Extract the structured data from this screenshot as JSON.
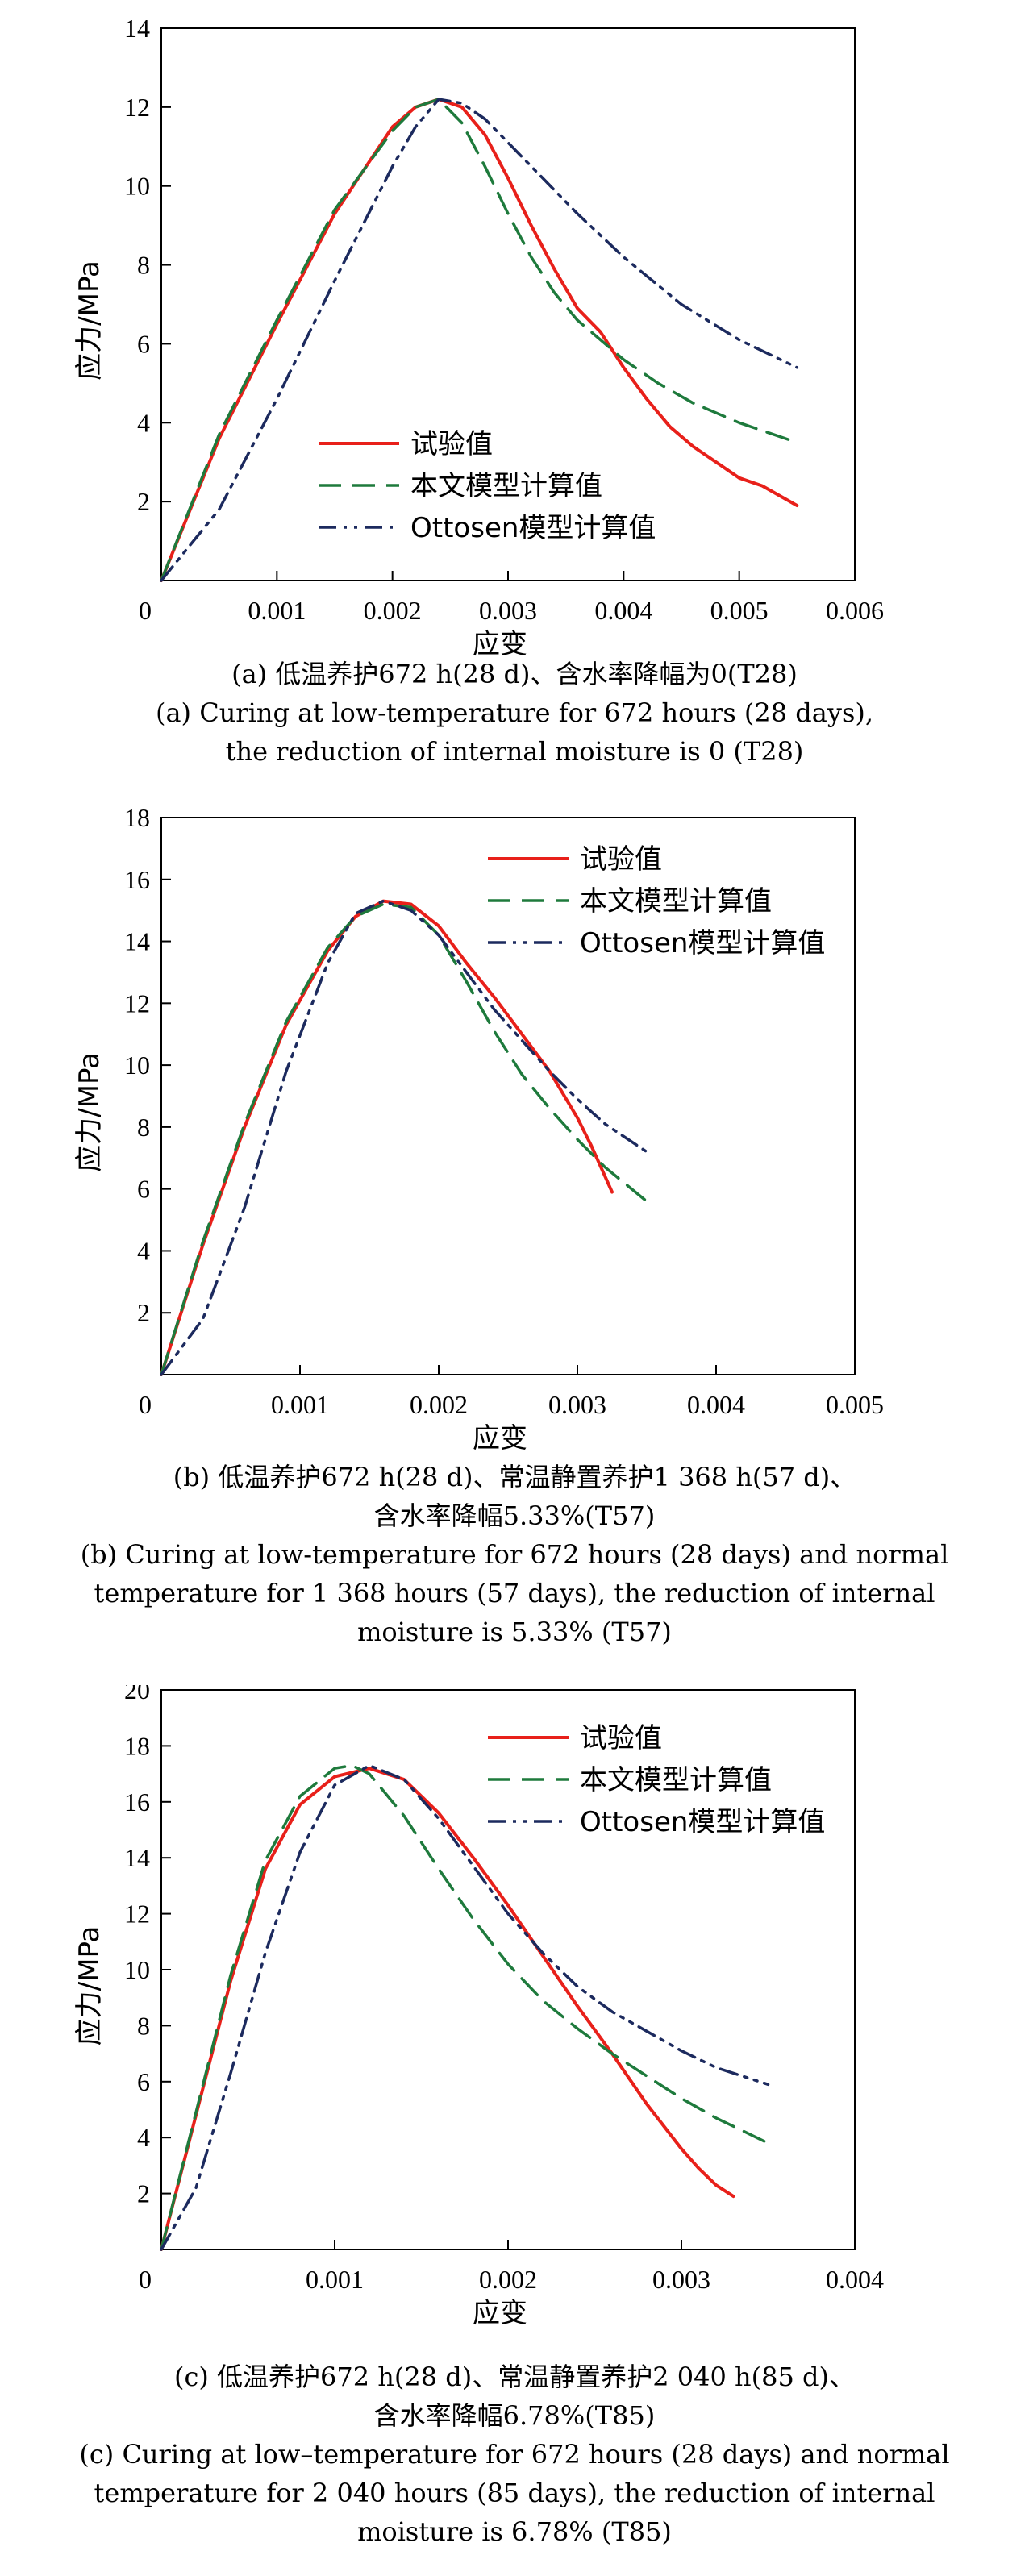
{
  "chart_data": [
    {
      "type": "line",
      "xlabel": "应变",
      "ylabel": "应力/MPa",
      "xlim": [
        0,
        0.006
      ],
      "ylim": [
        0,
        14
      ],
      "x_ticks": [
        "0",
        "0.001",
        "0.002",
        "0.003",
        "0.004",
        "0.005",
        "0.006"
      ],
      "y_ticks": [
        "2",
        "4",
        "6",
        "8",
        "10",
        "12",
        "14"
      ],
      "legend_position": "bottom-left",
      "series": [
        {
          "name": "试验值",
          "color": "#e8201a",
          "style": "solid",
          "points": [
            [
              0,
              0
            ],
            [
              0.0005,
              3.6
            ],
            [
              0.001,
              6.5
            ],
            [
              0.0015,
              9.3
            ],
            [
              0.002,
              11.5
            ],
            [
              0.0022,
              12.0
            ],
            [
              0.0024,
              12.2
            ],
            [
              0.0026,
              12.0
            ],
            [
              0.0028,
              11.3
            ],
            [
              0.003,
              10.2
            ],
            [
              0.0032,
              9.0
            ],
            [
              0.0034,
              7.9
            ],
            [
              0.0036,
              6.9
            ],
            [
              0.0038,
              6.3
            ],
            [
              0.004,
              5.4
            ],
            [
              0.0042,
              4.6
            ],
            [
              0.0044,
              3.9
            ],
            [
              0.0046,
              3.4
            ],
            [
              0.0048,
              3.0
            ],
            [
              0.005,
              2.6
            ],
            [
              0.0052,
              2.4
            ],
            [
              0.0055,
              1.9
            ]
          ]
        },
        {
          "name": "本文模型计算值",
          "color": "#1e7a3c",
          "style": "dashed",
          "points": [
            [
              0,
              0
            ],
            [
              0.0005,
              3.7
            ],
            [
              0.001,
              6.6
            ],
            [
              0.0015,
              9.4
            ],
            [
              0.002,
              11.4
            ],
            [
              0.0022,
              12.0
            ],
            [
              0.0024,
              12.2
            ],
            [
              0.0026,
              11.6
            ],
            [
              0.0028,
              10.5
            ],
            [
              0.003,
              9.3
            ],
            [
              0.0032,
              8.2
            ],
            [
              0.0034,
              7.3
            ],
            [
              0.0036,
              6.6
            ],
            [
              0.0038,
              6.1
            ],
            [
              0.004,
              5.6
            ],
            [
              0.0043,
              5.0
            ],
            [
              0.0046,
              4.5
            ],
            [
              0.005,
              4.0
            ],
            [
              0.0055,
              3.5
            ]
          ]
        },
        {
          "name": "Ottosen模型计算值",
          "color": "#1c2a5e",
          "style": "dashdotdot",
          "points": [
            [
              0,
              0
            ],
            [
              0.0005,
              1.8
            ],
            [
              0.001,
              4.6
            ],
            [
              0.0015,
              7.6
            ],
            [
              0.002,
              10.5
            ],
            [
              0.0022,
              11.5
            ],
            [
              0.0024,
              12.2
            ],
            [
              0.0026,
              12.1
            ],
            [
              0.0028,
              11.7
            ],
            [
              0.003,
              11.1
            ],
            [
              0.0033,
              10.2
            ],
            [
              0.0036,
              9.3
            ],
            [
              0.004,
              8.2
            ],
            [
              0.0045,
              7.0
            ],
            [
              0.005,
              6.1
            ],
            [
              0.0055,
              5.4
            ]
          ]
        }
      ]
    },
    {
      "type": "line",
      "xlabel": "应变",
      "ylabel": "应力/MPa",
      "xlim": [
        0,
        0.005
      ],
      "ylim": [
        0,
        18
      ],
      "x_ticks": [
        "0",
        "0.001",
        "0.002",
        "0.003",
        "0.004",
        "0.005"
      ],
      "y_ticks": [
        "2",
        "4",
        "6",
        "8",
        "10",
        "12",
        "14",
        "16",
        "18"
      ],
      "legend_position": "top-right",
      "series": [
        {
          "name": "试验值",
          "color": "#e8201a",
          "style": "solid",
          "points": [
            [
              0,
              0
            ],
            [
              0.0003,
              4.2
            ],
            [
              0.0006,
              8.0
            ],
            [
              0.0009,
              11.3
            ],
            [
              0.0012,
              13.7
            ],
            [
              0.0014,
              14.8
            ],
            [
              0.0016,
              15.3
            ],
            [
              0.0018,
              15.2
            ],
            [
              0.002,
              14.5
            ],
            [
              0.0022,
              13.3
            ],
            [
              0.0024,
              12.2
            ],
            [
              0.0026,
              11.0
            ],
            [
              0.0028,
              9.8
            ],
            [
              0.003,
              8.3
            ],
            [
              0.0031,
              7.4
            ],
            [
              0.0032,
              6.4
            ],
            [
              0.00325,
              5.9
            ]
          ]
        },
        {
          "name": "本文模型计算值",
          "color": "#1e7a3c",
          "style": "dashed",
          "points": [
            [
              0,
              0
            ],
            [
              0.0003,
              4.3
            ],
            [
              0.0006,
              8.1
            ],
            [
              0.0009,
              11.4
            ],
            [
              0.0012,
              13.8
            ],
            [
              0.0014,
              14.8
            ],
            [
              0.0016,
              15.2
            ],
            [
              0.0018,
              15.1
            ],
            [
              0.002,
              14.2
            ],
            [
              0.0022,
              12.7
            ],
            [
              0.0024,
              11.1
            ],
            [
              0.0026,
              9.7
            ],
            [
              0.0028,
              8.6
            ],
            [
              0.003,
              7.6
            ],
            [
              0.0032,
              6.7
            ],
            [
              0.0035,
              5.6
            ]
          ]
        },
        {
          "name": "Ottosen模型计算值",
          "color": "#1c2a5e",
          "style": "dashdotdot",
          "points": [
            [
              0,
              0
            ],
            [
              0.0003,
              1.8
            ],
            [
              0.0006,
              5.4
            ],
            [
              0.0009,
              9.8
            ],
            [
              0.0012,
              13.3
            ],
            [
              0.0014,
              14.9
            ],
            [
              0.0016,
              15.3
            ],
            [
              0.0018,
              15.0
            ],
            [
              0.002,
              14.2
            ],
            [
              0.0022,
              13.0
            ],
            [
              0.0024,
              11.8
            ],
            [
              0.0026,
              10.8
            ],
            [
              0.0028,
              9.8
            ],
            [
              0.003,
              8.9
            ],
            [
              0.0032,
              8.1
            ],
            [
              0.0035,
              7.2
            ]
          ]
        }
      ]
    },
    {
      "type": "line",
      "xlabel": "应变",
      "ylabel": "应力/MPa",
      "xlim": [
        0,
        0.004
      ],
      "ylim": [
        0,
        20
      ],
      "x_ticks": [
        "0",
        "0.001",
        "0.002",
        "0.003",
        "0.004"
      ],
      "y_ticks": [
        "2",
        "4",
        "6",
        "8",
        "10",
        "12",
        "14",
        "16",
        "18",
        "20"
      ],
      "legend_position": "top-right",
      "series": [
        {
          "name": "试验值",
          "color": "#e8201a",
          "style": "solid",
          "points": [
            [
              0,
              0
            ],
            [
              0.0002,
              4.8
            ],
            [
              0.0004,
              9.6
            ],
            [
              0.0006,
              13.6
            ],
            [
              0.0008,
              15.9
            ],
            [
              0.001,
              16.9
            ],
            [
              0.0012,
              17.2
            ],
            [
              0.0014,
              16.8
            ],
            [
              0.0016,
              15.6
            ],
            [
              0.0018,
              14.0
            ],
            [
              0.002,
              12.3
            ],
            [
              0.0022,
              10.5
            ],
            [
              0.0024,
              8.7
            ],
            [
              0.0026,
              7.0
            ],
            [
              0.0028,
              5.2
            ],
            [
              0.003,
              3.6
            ],
            [
              0.0031,
              2.9
            ],
            [
              0.0032,
              2.3
            ],
            [
              0.0033,
              1.9
            ]
          ]
        },
        {
          "name": "本文模型计算值",
          "color": "#1e7a3c",
          "style": "dashed",
          "points": [
            [
              0,
              0
            ],
            [
              0.0002,
              4.9
            ],
            [
              0.0004,
              9.8
            ],
            [
              0.0006,
              13.9
            ],
            [
              0.0008,
              16.2
            ],
            [
              0.001,
              17.2
            ],
            [
              0.0011,
              17.3
            ],
            [
              0.0012,
              17.0
            ],
            [
              0.0014,
              15.5
            ],
            [
              0.0016,
              13.6
            ],
            [
              0.0018,
              11.8
            ],
            [
              0.002,
              10.2
            ],
            [
              0.0022,
              8.9
            ],
            [
              0.0024,
              7.9
            ],
            [
              0.0026,
              7.0
            ],
            [
              0.0028,
              6.2
            ],
            [
              0.003,
              5.4
            ],
            [
              0.0032,
              4.7
            ],
            [
              0.0035,
              3.8
            ]
          ]
        },
        {
          "name": "Ottosen模型计算值",
          "color": "#1c2a5e",
          "style": "dashdotdot",
          "points": [
            [
              0,
              0
            ],
            [
              0.0002,
              2.2
            ],
            [
              0.0004,
              6.3
            ],
            [
              0.0006,
              10.6
            ],
            [
              0.0008,
              14.2
            ],
            [
              0.001,
              16.6
            ],
            [
              0.0012,
              17.3
            ],
            [
              0.0014,
              16.8
            ],
            [
              0.0016,
              15.4
            ],
            [
              0.0018,
              13.7
            ],
            [
              0.002,
              12.0
            ],
            [
              0.0022,
              10.6
            ],
            [
              0.0024,
              9.4
            ],
            [
              0.0026,
              8.5
            ],
            [
              0.0028,
              7.8
            ],
            [
              0.003,
              7.1
            ],
            [
              0.0032,
              6.5
            ],
            [
              0.0035,
              5.9
            ]
          ]
        }
      ]
    }
  ],
  "captions": [
    [
      "(a) 低温养护672 h(28 d)、含水率降幅为0(T28)",
      "(a) Curing at low-temperature for 672 hours (28 days),",
      "the reduction of internal moisture is 0 (T28)"
    ],
    [
      "(b) 低温养护672 h(28 d)、常温静置养护1 368 h(57 d)、",
      "含水率降幅5.33%(T57)",
      "(b) Curing at low-temperature for 672 hours (28 days) and normal",
      "temperature for 1 368 hours (57 days), the reduction of internal",
      "moisture is 5.33% (T57)"
    ],
    [
      "(c) 低温养护672 h(28 d)、常温静置养护2 040 h(85 d)、",
      "含水率降幅6.78%(T85)",
      "(c) Curing at low–temperature for 672 hours (28 days) and normal",
      "temperature for 2 040 hours (85 days), the reduction of internal",
      "moisture is 6.78% (T85)"
    ]
  ]
}
